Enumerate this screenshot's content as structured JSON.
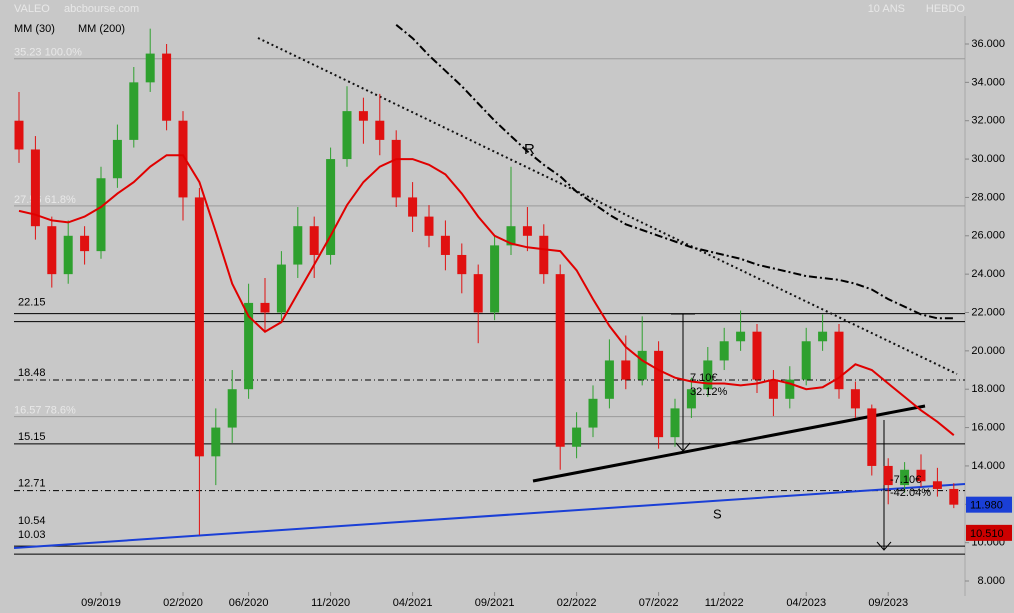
{
  "chart_data": {
    "type": "candlestick",
    "title": "VALEO",
    "source": "abcbourse.com",
    "period": "10 ANS",
    "interval": "HEBDO",
    "x": [
      "04/2019",
      "05/2019",
      "06/2019",
      "07/2019",
      "08/2019",
      "09/2019",
      "10/2019",
      "11/2019",
      "12/2019",
      "01/2020",
      "02/2020",
      "03/2020",
      "04/2020",
      "05/2020",
      "06/2020",
      "07/2020",
      "08/2020",
      "09/2020",
      "10/2020",
      "11/2020",
      "12/2020",
      "01/2021",
      "02/2021",
      "03/2021",
      "04/2021",
      "05/2021",
      "06/2021",
      "07/2021",
      "08/2021",
      "09/2021",
      "10/2021",
      "11/2021",
      "12/2021",
      "01/2022",
      "02/2022",
      "03/2022",
      "04/2022",
      "05/2022",
      "06/2022",
      "07/2022",
      "08/2022",
      "09/2022",
      "10/2022",
      "11/2022",
      "12/2022",
      "01/2023",
      "02/2023",
      "03/2023",
      "04/2023",
      "05/2023",
      "06/2023",
      "07/2023",
      "08/2023",
      "09/2023",
      "10/2023",
      "11/2023",
      "12/2023",
      "01/2024"
    ],
    "open": [
      32.0,
      30.5,
      26.5,
      24.0,
      26.0,
      25.2,
      29.0,
      31.0,
      34.0,
      35.5,
      32.0,
      28.0,
      14.5,
      16.0,
      18.0,
      22.5,
      22.0,
      24.5,
      26.5,
      25.0,
      30.0,
      32.5,
      32.0,
      31.0,
      28.0,
      27.0,
      26.0,
      25.0,
      24.0,
      22.0,
      25.5,
      26.5,
      26.0,
      24.0,
      15.0,
      16.0,
      17.5,
      19.5,
      18.5,
      20.0,
      15.5,
      17.0,
      18.0,
      19.5,
      20.5,
      21.0,
      18.5,
      17.5,
      18.5,
      20.5,
      21.0,
      18.0,
      17.0,
      14.0,
      13.0,
      13.8,
      13.2,
      12.8
    ],
    "high": [
      33.5,
      31.2,
      27.0,
      26.8,
      26.5,
      29.6,
      31.8,
      34.8,
      36.8,
      36.0,
      32.5,
      28.5,
      17.0,
      19.0,
      23.5,
      23.8,
      25.2,
      27.5,
      27.0,
      30.6,
      33.8,
      33.2,
      33.4,
      31.5,
      28.8,
      27.6,
      26.8,
      25.6,
      24.5,
      26.0,
      29.6,
      27.5,
      26.6,
      24.5,
      16.8,
      18.2,
      20.6,
      20.8,
      21.8,
      20.5,
      17.5,
      18.6,
      20.2,
      21.2,
      22.1,
      21.4,
      19.0,
      19.2,
      21.2,
      21.9,
      21.4,
      18.4,
      17.2,
      14.4,
      14.2,
      14.6,
      13.9,
      13.1
    ],
    "low": [
      29.8,
      25.8,
      23.3,
      23.5,
      24.5,
      24.8,
      28.5,
      30.6,
      33.5,
      31.5,
      26.8,
      10.4,
      13.0,
      15.2,
      17.5,
      21.0,
      21.5,
      23.8,
      23.8,
      24.5,
      29.6,
      30.8,
      30.2,
      27.5,
      26.2,
      25.4,
      24.2,
      23.0,
      20.4,
      21.6,
      25.0,
      25.2,
      23.5,
      13.8,
      14.4,
      15.5,
      17.0,
      18.0,
      18.2,
      14.9,
      15.0,
      16.5,
      17.6,
      19.0,
      20.0,
      17.8,
      16.6,
      17.0,
      18.2,
      20.0,
      17.5,
      16.5,
      13.5,
      12.0,
      12.6,
      12.9,
      12.4,
      11.8
    ],
    "close": [
      30.5,
      26.5,
      24.0,
      26.0,
      25.2,
      29.0,
      31.0,
      34.0,
      35.5,
      32.0,
      28.0,
      14.5,
      16.0,
      18.0,
      22.5,
      22.0,
      24.5,
      26.5,
      25.0,
      30.0,
      32.5,
      32.0,
      31.0,
      28.0,
      27.0,
      26.0,
      25.0,
      24.0,
      22.0,
      25.5,
      26.5,
      26.0,
      24.0,
      15.0,
      16.0,
      17.5,
      19.5,
      18.5,
      20.0,
      15.5,
      17.0,
      18.0,
      19.5,
      20.5,
      21.0,
      18.5,
      17.5,
      18.5,
      20.5,
      21.0,
      18.0,
      17.0,
      14.0,
      13.0,
      13.8,
      13.2,
      12.8,
      11.98
    ],
    "up_color": "#2ea02e",
    "down_color": "#e01010",
    "series": [
      {
        "name": "MM (30)",
        "color": "#e00000",
        "style": "solid",
        "values": [
          27.3,
          27.1,
          26.8,
          26.7,
          27.0,
          27.5,
          28.2,
          28.8,
          29.6,
          30.2,
          30.2,
          28.8,
          26.2,
          23.5,
          21.8,
          21.0,
          21.5,
          23.0,
          24.5,
          26.0,
          27.6,
          28.8,
          29.6,
          30.0,
          30.0,
          29.7,
          29.2,
          28.2,
          27.0,
          26.0,
          25.6,
          25.4,
          25.3,
          25.2,
          24.2,
          22.7,
          21.3,
          20.2,
          19.5,
          19.0,
          18.6,
          18.4,
          18.3,
          18.3,
          18.2,
          18.3,
          18.5,
          18.3,
          18.0,
          18.1,
          18.6,
          19.3,
          19.0,
          18.3,
          17.6,
          16.9,
          16.3,
          15.6
        ]
      },
      {
        "name": "MM (200)",
        "color": "#000000",
        "style": "dashdot",
        "values": [
          null,
          null,
          null,
          null,
          null,
          null,
          null,
          null,
          null,
          null,
          null,
          null,
          null,
          null,
          null,
          null,
          null,
          null,
          null,
          null,
          null,
          null,
          null,
          37.0,
          36.3,
          35.4,
          34.6,
          33.8,
          32.9,
          32.0,
          31.2,
          30.4,
          29.7,
          29.1,
          28.3,
          27.7,
          27.1,
          26.6,
          26.3,
          26.0,
          25.7,
          25.4,
          25.2,
          25.0,
          24.8,
          24.5,
          24.3,
          24.1,
          23.9,
          23.8,
          23.7,
          23.5,
          23.2,
          22.7,
          22.3,
          21.9,
          21.7,
          21.7
        ]
      }
    ],
    "ylim": [
      8,
      36.9
    ],
    "yticks": [
      {
        "value": 8,
        "label": "8.000"
      },
      {
        "value": 10,
        "label": "10.000"
      },
      {
        "value": 12,
        "label": "12.000"
      },
      {
        "value": 14,
        "label": "14.000"
      },
      {
        "value": 16,
        "label": "16.000"
      },
      {
        "value": 18,
        "label": "18.000"
      },
      {
        "value": 20,
        "label": "20.000"
      },
      {
        "value": 22,
        "label": "22.000"
      },
      {
        "value": 24,
        "label": "24.000"
      },
      {
        "value": 26,
        "label": "26.000"
      },
      {
        "value": 28,
        "label": "28.000"
      },
      {
        "value": 30,
        "label": "30.000"
      },
      {
        "value": 32,
        "label": "32.000"
      },
      {
        "value": 34,
        "label": "34.000"
      },
      {
        "value": 36,
        "label": "36.000"
      }
    ],
    "xticks": [
      "09/2019",
      "02/2020",
      "06/2020",
      "11/2020",
      "04/2021",
      "09/2021",
      "02/2022",
      "07/2022",
      "11/2022",
      "04/2023",
      "09/2023"
    ],
    "levels": [
      {
        "value": 35.23,
        "label": "35.23 100.0%",
        "style": "fib"
      },
      {
        "value": 27.56,
        "label": "27.56 61.8%",
        "style": "fib"
      },
      {
        "value": 22.15,
        "label": "22.15",
        "style": "double"
      },
      {
        "value": 18.48,
        "label": "18.48",
        "style": "dashdot"
      },
      {
        "value": 16.57,
        "label": "16.57 78.6%",
        "style": "fib"
      },
      {
        "value": 15.15,
        "label": "15.15",
        "style": "solid"
      },
      {
        "value": 12.71,
        "label": "12.71",
        "style": "dashdot"
      },
      {
        "value": 10.54,
        "label": "10.54",
        "style": "label-red"
      },
      {
        "value": 10.03,
        "label": "10.03",
        "style": "double"
      }
    ],
    "price_tags": [
      {
        "value": 11.98,
        "label": "11.980",
        "color": "#1a3fd6"
      },
      {
        "value": 10.51,
        "label": "10.510",
        "color": "#cc0000"
      }
    ],
    "annotations": [
      "R",
      "S",
      "7.10€",
      "32.12%",
      "-7.10€",
      "-42.04%"
    ]
  }
}
